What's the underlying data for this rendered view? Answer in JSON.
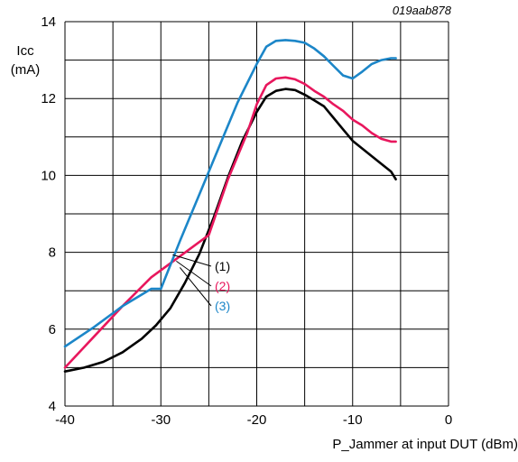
{
  "chart_data": {
    "type": "line",
    "figure_id": "019aab878",
    "title": "",
    "ylabel_line1": "Icc",
    "ylabel_line2": "(mA)",
    "xlabel": "P_Jammer at input DUT (dBm)",
    "xlim": [
      -40,
      0
    ],
    "ylim": [
      4,
      14
    ],
    "grid": true,
    "xticks": [
      -40,
      -30,
      -20,
      -10,
      0
    ],
    "yticks": [
      4,
      6,
      8,
      10,
      12,
      14
    ],
    "xtick_labels": [
      "-40",
      "-30",
      "-20",
      "-10",
      "0"
    ],
    "ytick_labels": [
      "4",
      "6",
      "8",
      "10",
      "12",
      "14"
    ],
    "series": [
      {
        "name": "(1)",
        "color": "#000000",
        "x": [
          -40,
          -38,
          -36,
          -34,
          -32,
          -30.5,
          -29,
          -27.5,
          -26,
          -24.5,
          -23,
          -21.5,
          -20,
          -19,
          -18,
          -17,
          -16,
          -15,
          -14,
          -13,
          -12,
          -11,
          -10,
          -9,
          -8,
          -7,
          -6,
          -5.5
        ],
        "y": [
          4.9,
          5.0,
          5.15,
          5.4,
          5.75,
          6.1,
          6.55,
          7.2,
          7.95,
          8.9,
          9.95,
          10.9,
          11.65,
          12.05,
          12.2,
          12.25,
          12.22,
          12.1,
          11.95,
          11.8,
          11.5,
          11.2,
          10.9,
          10.7,
          10.5,
          10.3,
          10.1,
          9.9
        ]
      },
      {
        "name": "(2)",
        "color": "#e8175d",
        "x": [
          -40,
          -37,
          -34,
          -31,
          -28,
          -25,
          -23,
          -21,
          -20,
          -19,
          -18,
          -17,
          -16,
          -15,
          -14,
          -13,
          -12,
          -11,
          -10,
          -9,
          -8,
          -7,
          -6,
          -5.5
        ],
        "y": [
          5.0,
          5.8,
          6.6,
          7.35,
          7.9,
          8.45,
          9.9,
          11.1,
          11.85,
          12.35,
          12.52,
          12.55,
          12.5,
          12.38,
          12.2,
          12.05,
          11.85,
          11.68,
          11.45,
          11.3,
          11.1,
          10.95,
          10.88,
          10.88
        ]
      },
      {
        "name": "(3)",
        "color": "#1c86c8",
        "x": [
          -40,
          -37,
          -34,
          -31,
          -30,
          -28,
          -26,
          -24,
          -22,
          -20,
          -19,
          -18,
          -17,
          -16,
          -15,
          -14,
          -13,
          -12,
          -11,
          -10,
          -9,
          -8,
          -7,
          -6,
          -5.5
        ],
        "y": [
          5.55,
          6.05,
          6.6,
          7.05,
          7.05,
          8.3,
          9.5,
          10.7,
          11.9,
          12.9,
          13.35,
          13.5,
          13.52,
          13.5,
          13.45,
          13.3,
          13.1,
          12.85,
          12.6,
          12.52,
          12.7,
          12.9,
          13.0,
          13.05,
          13.05
        ]
      }
    ],
    "legend_placement": "inside-center-left, callout labels",
    "callout_origin": [
      -28.2,
      7.7
    ]
  }
}
